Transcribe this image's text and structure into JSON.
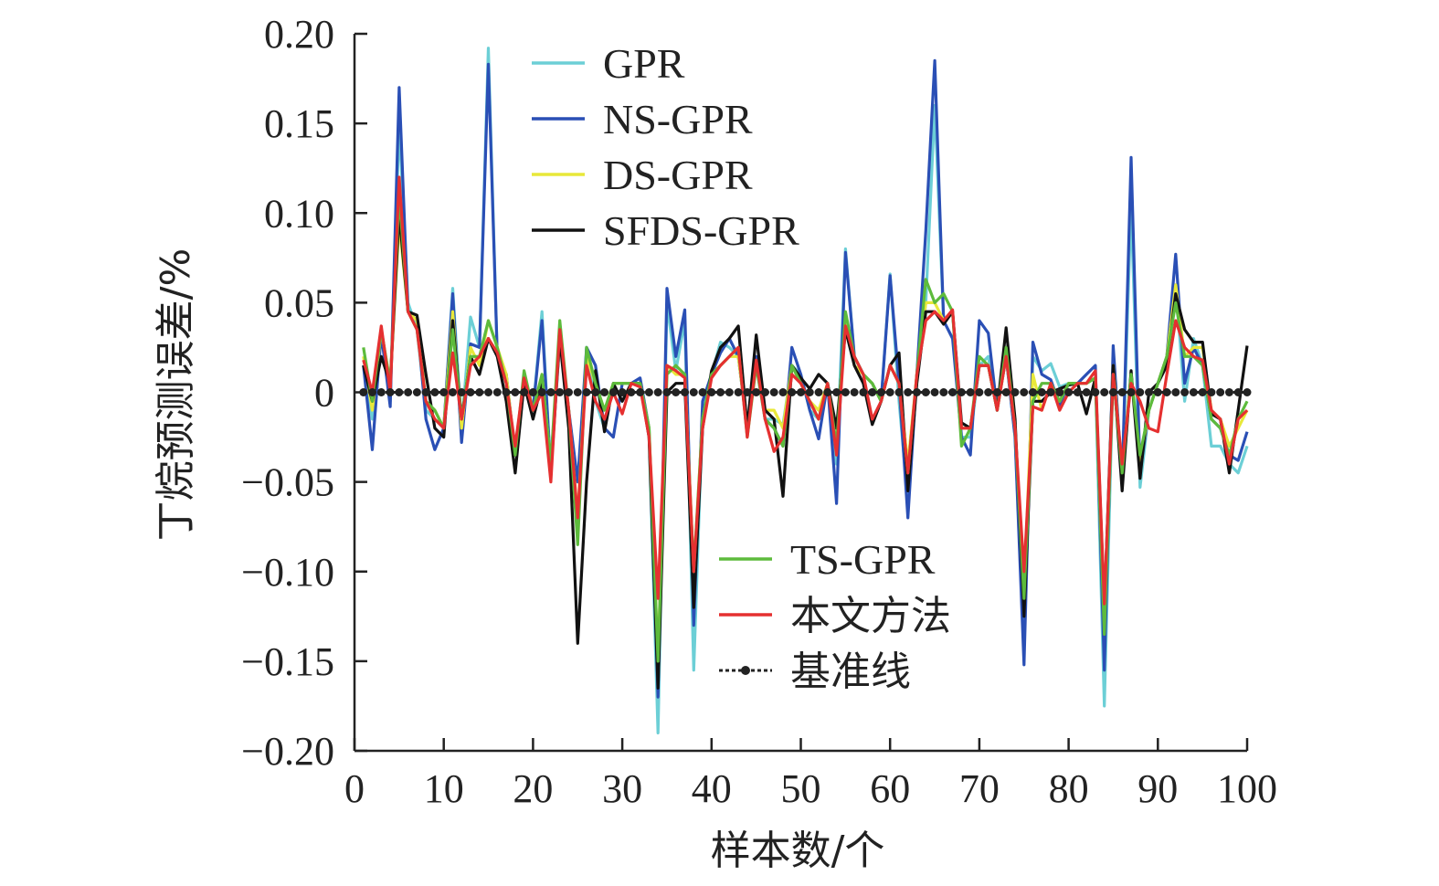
{
  "chart_data": {
    "type": "line",
    "title": "",
    "xlabel": "样本数/个",
    "ylabel": "丁烷预测误差/%",
    "xlim": [
      0,
      100
    ],
    "ylim": [
      -0.2,
      0.2
    ],
    "x_ticks": [
      0,
      10,
      20,
      30,
      40,
      50,
      60,
      70,
      80,
      90,
      100
    ],
    "x_tick_labels": [
      "0",
      "10",
      "20",
      "30",
      "40",
      "50",
      "60",
      "70",
      "80",
      "90",
      "100"
    ],
    "y_ticks": [
      0.2,
      0.15,
      0.1,
      0.05,
      0,
      -0.05,
      -0.1,
      -0.15,
      -0.2
    ],
    "y_tick_labels": [
      "0.20",
      "0.15",
      "0.10",
      "0.05",
      "0",
      "−0.05",
      "−0.10",
      "−0.15",
      "−0.20"
    ],
    "grid": false,
    "x": [
      1,
      2,
      3,
      4,
      5,
      6,
      7,
      8,
      9,
      10,
      11,
      12,
      13,
      14,
      15,
      16,
      17,
      18,
      19,
      20,
      21,
      22,
      23,
      24,
      25,
      26,
      27,
      28,
      29,
      30,
      31,
      32,
      33,
      34,
      35,
      36,
      37,
      38,
      39,
      40,
      41,
      42,
      43,
      44,
      45,
      46,
      47,
      48,
      49,
      50,
      51,
      52,
      53,
      54,
      55,
      56,
      57,
      58,
      59,
      60,
      61,
      62,
      63,
      64,
      65,
      66,
      67,
      68,
      69,
      70,
      71,
      72,
      73,
      74,
      75,
      76,
      77,
      78,
      79,
      80,
      81,
      82,
      83,
      84,
      85,
      86,
      87,
      88,
      89,
      90,
      91,
      92,
      93,
      94,
      95,
      96,
      97,
      98,
      99,
      100
    ],
    "series": [
      {
        "name": "GPR",
        "color": "#6ccfd6",
        "values": [
          0.015,
          -0.015,
          0.035,
          -0.005,
          0.15,
          0.05,
          0.035,
          -0.01,
          -0.015,
          -0.02,
          0.058,
          -0.02,
          0.042,
          0.025,
          0.192,
          0.02,
          0.01,
          -0.035,
          0.005,
          -0.01,
          0.045,
          -0.045,
          0.03,
          -0.01,
          -0.08,
          0.025,
          -0.005,
          -0.02,
          0.005,
          0.005,
          0.005,
          0.005,
          -0.025,
          -0.19,
          0.05,
          0.012,
          0.04,
          -0.155,
          -0.01,
          0.01,
          0.028,
          0.025,
          0.02,
          -0.02,
          0.015,
          -0.015,
          -0.015,
          -0.018,
          0.015,
          0.01,
          -0.01,
          -0.015,
          0.005,
          -0.04,
          0.08,
          0.02,
          0.01,
          0.005,
          -0.005,
          0.066,
          -0.005,
          -0.06,
          0.01,
          0.05,
          0.16,
          0.04,
          0.045,
          -0.025,
          -0.025,
          0.015,
          0.02,
          -0.01,
          0.02,
          -0.025,
          -0.14,
          0.02,
          0.012,
          0.016,
          0.003,
          0.005,
          0.005,
          0.005,
          0.008,
          -0.175,
          0.015,
          -0.05,
          0.105,
          -0.053,
          -0.01,
          0.005,
          0.02,
          0.06,
          -0.005,
          0.03,
          0.015,
          -0.03,
          -0.03,
          -0.04,
          -0.045,
          -0.03
        ]
      },
      {
        "name": "NS-GPR",
        "color": "#2a4fb5",
        "values": [
          0.015,
          -0.032,
          0.033,
          -0.008,
          0.17,
          0.045,
          0.04,
          -0.015,
          -0.032,
          -0.02,
          0.055,
          -0.028,
          0.027,
          0.025,
          0.183,
          0.02,
          0.01,
          -0.035,
          0.005,
          -0.01,
          0.04,
          -0.045,
          0.03,
          -0.01,
          -0.05,
          0.025,
          0.015,
          -0.02,
          -0.025,
          0.005,
          0.005,
          0.008,
          -0.02,
          -0.17,
          0.058,
          0.02,
          0.046,
          -0.13,
          -0.005,
          0.01,
          0.022,
          0.03,
          0.02,
          -0.02,
          0.02,
          -0.015,
          -0.02,
          -0.03,
          0.025,
          0.01,
          -0.01,
          -0.026,
          0.005,
          -0.062,
          0.078,
          0.02,
          0.01,
          0.005,
          -0.005,
          0.065,
          0.005,
          -0.07,
          0.01,
          0.09,
          0.185,
          0.04,
          0.03,
          -0.025,
          -0.035,
          0.04,
          0.033,
          -0.01,
          0.02,
          -0.025,
          -0.152,
          0.028,
          0.01,
          0.007,
          -0.007,
          0.005,
          0.005,
          0.01,
          0.015,
          -0.155,
          0.026,
          -0.05,
          0.131,
          -0.045,
          -0.01,
          0.005,
          0.02,
          0.077,
          0.005,
          0.025,
          0.015,
          -0.015,
          -0.02,
          -0.035,
          -0.038,
          -0.022
        ]
      },
      {
        "name": "DS-GPR",
        "color": "#e8e83a",
        "values": [
          0.02,
          -0.01,
          0.035,
          0.005,
          0.095,
          0.045,
          0.04,
          -0.005,
          -0.01,
          -0.02,
          0.045,
          -0.02,
          0.025,
          0.015,
          0.04,
          0.025,
          0.01,
          -0.035,
          0.005,
          -0.01,
          0.01,
          -0.04,
          0.03,
          -0.01,
          -0.07,
          0.02,
          0.005,
          -0.01,
          0.005,
          0.005,
          0.005,
          0.005,
          -0.02,
          -0.15,
          0.015,
          0.01,
          0.01,
          -0.1,
          -0.015,
          0.01,
          0.015,
          0.02,
          0.02,
          -0.02,
          0.015,
          -0.01,
          -0.01,
          -0.02,
          0.015,
          0.005,
          -0.005,
          -0.01,
          0.005,
          -0.03,
          0.04,
          0.015,
          0.01,
          0.005,
          -0.005,
          0.015,
          0.005,
          -0.04,
          0.01,
          0.05,
          0.05,
          0.04,
          0.045,
          -0.02,
          -0.02,
          0.015,
          0.015,
          -0.01,
          0.02,
          -0.02,
          -0.11,
          0.01,
          -0.01,
          0.005,
          -0.005,
          0.005,
          0.005,
          0.005,
          0.008,
          -0.13,
          0.015,
          -0.045,
          0.01,
          -0.04,
          -0.01,
          0.005,
          0.02,
          0.06,
          0.02,
          0.025,
          0.025,
          -0.01,
          -0.015,
          -0.03,
          -0.02,
          -0.01
        ]
      },
      {
        "name": "SFDS-GPR",
        "color": "#111111",
        "values": [
          0.015,
          -0.005,
          0.02,
          0.005,
          0.1,
          0.045,
          0.043,
          0.01,
          -0.02,
          -0.025,
          0.04,
          -0.015,
          0.02,
          0.01,
          0.03,
          0.02,
          -0.005,
          -0.045,
          0.005,
          -0.015,
          0.005,
          -0.04,
          0.03,
          -0.02,
          -0.14,
          -0.05,
          0.012,
          -0.022,
          0.005,
          -0.005,
          0.005,
          0.005,
          -0.025,
          -0.165,
          0.0,
          0.005,
          0.005,
          -0.12,
          -0.02,
          0.012,
          0.025,
          0.03,
          0.037,
          -0.02,
          0.032,
          -0.01,
          -0.015,
          -0.058,
          0.015,
          0.008,
          0.002,
          0.01,
          0.005,
          -0.02,
          0.035,
          0.015,
          0.005,
          -0.018,
          -0.005,
          0.015,
          0.022,
          -0.055,
          0.005,
          0.045,
          0.045,
          0.038,
          0.045,
          -0.017,
          -0.02,
          0.015,
          0.015,
          -0.01,
          0.036,
          -0.015,
          -0.125,
          -0.005,
          -0.005,
          0.0,
          0.002,
          0.004,
          0.005,
          -0.012,
          0.008,
          -0.12,
          0.015,
          -0.055,
          0.012,
          -0.048,
          0.0,
          0.005,
          0.015,
          0.055,
          0.035,
          0.028,
          0.028,
          -0.012,
          -0.015,
          -0.045,
          -0.01,
          0.026
        ]
      },
      {
        "name": "TS-GPR",
        "color": "#5dbb3c",
        "values": [
          0.025,
          -0.005,
          0.035,
          0.005,
          0.11,
          0.045,
          0.035,
          -0.005,
          -0.01,
          -0.02,
          0.035,
          -0.015,
          0.02,
          0.02,
          0.04,
          0.025,
          0.005,
          -0.035,
          0.012,
          -0.01,
          0.01,
          -0.04,
          0.04,
          -0.01,
          -0.085,
          0.025,
          0.005,
          -0.01,
          0.005,
          0.005,
          0.005,
          0.005,
          -0.02,
          -0.15,
          0.01,
          0.015,
          0.01,
          -0.1,
          -0.015,
          0.01,
          0.015,
          0.02,
          0.025,
          -0.025,
          0.015,
          -0.015,
          -0.02,
          -0.03,
          0.015,
          0.005,
          -0.005,
          -0.015,
          0.005,
          -0.03,
          0.045,
          0.02,
          0.01,
          0.005,
          -0.005,
          0.015,
          0.005,
          -0.045,
          0.01,
          0.063,
          0.05,
          0.055,
          0.045,
          -0.03,
          -0.02,
          0.02,
          0.015,
          -0.01,
          0.025,
          -0.02,
          -0.115,
          -0.005,
          0.005,
          0.005,
          -0.005,
          0.005,
          0.005,
          0.005,
          0.008,
          -0.135,
          0.01,
          -0.045,
          0.01,
          -0.035,
          -0.01,
          0.005,
          0.02,
          0.05,
          0.02,
          0.02,
          0.015,
          -0.015,
          -0.02,
          -0.035,
          -0.015,
          -0.005
        ]
      },
      {
        "name": "本文方法",
        "color": "#e53030",
        "values": [
          0.018,
          0.0,
          0.037,
          0.0,
          0.12,
          0.045,
          0.035,
          -0.005,
          -0.015,
          -0.02,
          0.022,
          -0.015,
          0.015,
          0.02,
          0.03,
          0.022,
          0.005,
          -0.03,
          0.008,
          -0.01,
          0.0,
          -0.05,
          0.035,
          -0.01,
          -0.07,
          0.015,
          -0.005,
          -0.015,
          0.0,
          -0.012,
          0.005,
          0.003,
          -0.025,
          -0.115,
          0.015,
          0.012,
          0.008,
          -0.1,
          -0.02,
          0.008,
          0.015,
          0.02,
          0.025,
          -0.025,
          0.018,
          -0.015,
          -0.033,
          -0.025,
          0.01,
          0.005,
          -0.005,
          -0.015,
          0.005,
          -0.035,
          0.037,
          0.02,
          0.01,
          -0.015,
          -0.005,
          0.015,
          0.005,
          -0.045,
          0.01,
          0.04,
          0.045,
          0.04,
          0.046,
          -0.02,
          -0.02,
          0.015,
          0.015,
          -0.01,
          0.02,
          -0.02,
          -0.1,
          -0.008,
          -0.01,
          0.005,
          -0.01,
          0.0,
          0.005,
          0.005,
          0.012,
          -0.118,
          0.01,
          -0.04,
          0.005,
          -0.005,
          -0.02,
          -0.022,
          0.01,
          0.04,
          0.025,
          0.02,
          0.018,
          -0.01,
          -0.015,
          -0.04,
          -0.015,
          -0.01
        ]
      },
      {
        "name": "基准线",
        "color": "#222222",
        "style": "dotted-markers",
        "values": [
          0,
          0,
          0,
          0,
          0,
          0,
          0,
          0,
          0,
          0,
          0,
          0,
          0,
          0,
          0,
          0,
          0,
          0,
          0,
          0,
          0,
          0,
          0,
          0,
          0,
          0,
          0,
          0,
          0,
          0,
          0,
          0,
          0,
          0,
          0,
          0,
          0,
          0,
          0,
          0,
          0,
          0,
          0,
          0,
          0,
          0,
          0,
          0,
          0,
          0,
          0,
          0,
          0,
          0,
          0,
          0,
          0,
          0,
          0,
          0,
          0,
          0,
          0,
          0,
          0,
          0,
          0,
          0,
          0,
          0,
          0,
          0,
          0,
          0,
          0,
          0,
          0,
          0,
          0,
          0,
          0,
          0,
          0,
          0,
          0,
          0,
          0,
          0,
          0,
          0,
          0,
          0,
          0,
          0,
          0,
          0,
          0,
          0,
          0,
          0
        ]
      }
    ],
    "legend": [
      {
        "group": "top-left",
        "entries": [
          "GPR",
          "NS-GPR",
          "DS-GPR",
          "SFDS-GPR"
        ]
      },
      {
        "group": "bottom-center",
        "entries": [
          "TS-GPR",
          "本文方法",
          "基准线"
        ]
      }
    ]
  }
}
